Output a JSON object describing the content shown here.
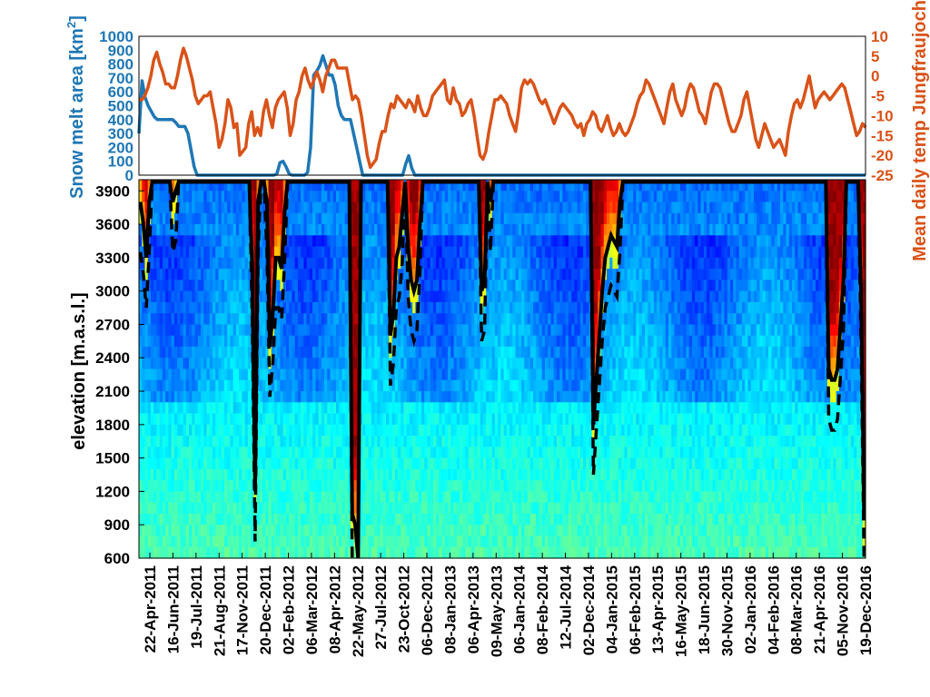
{
  "chart_data": [
    {
      "type": "line",
      "title": "",
      "xlabel": "",
      "ylabel_left": "Snow melt area [km",
      "ylabel_left_sup": "2",
      "ylabel_left_end": "]",
      "ylabel_right": "Mean daily temp Jungfraujoch",
      "ylim_left": [
        0,
        1000
      ],
      "ylim_right": [
        -25,
        10
      ],
      "yticks_left": [
        "0",
        "100",
        "200",
        "300",
        "400",
        "500",
        "600",
        "700",
        "800",
        "900",
        "1000"
      ],
      "yticks_right": [
        "-25",
        "-20",
        "-15",
        "-10",
        "-5",
        "0",
        "5",
        "10"
      ],
      "grid": false,
      "colors": {
        "left": "#1f77b4",
        "right": "#d95319"
      },
      "series": [
        {
          "axis": "left",
          "color": "#1f77b4",
          "values": [
            300,
            680,
            560,
            500,
            460,
            420,
            400,
            400,
            400,
            400,
            400,
            400,
            380,
            350,
            350,
            350,
            300,
            180,
            60,
            0,
            0,
            0,
            0,
            0,
            0,
            0,
            0,
            0,
            0,
            0,
            0,
            0,
            0,
            0,
            0,
            0,
            0,
            0,
            0,
            0,
            0,
            0,
            0,
            0,
            0,
            10,
            90,
            100,
            60,
            10,
            0,
            0,
            0,
            0,
            0,
            20,
            200,
            720,
            750,
            790,
            860,
            790,
            720,
            720,
            650,
            500,
            430,
            400,
            400,
            400,
            300,
            200,
            100,
            0,
            0,
            0,
            0,
            0,
            0,
            0,
            0,
            0,
            0,
            0,
            0,
            0,
            0,
            80,
            140,
            50,
            0,
            0,
            0,
            0,
            0,
            0,
            0,
            0,
            0,
            0,
            0,
            0,
            0,
            0,
            0,
            0,
            0,
            0,
            0,
            0,
            0,
            0,
            0,
            0,
            0,
            0,
            0,
            0,
            0,
            0,
            0,
            0,
            0,
            0,
            0,
            0,
            0,
            0,
            0,
            0,
            0,
            0,
            0,
            0,
            0,
            0,
            0,
            0,
            0,
            0,
            0,
            0,
            0,
            0,
            0,
            0,
            0,
            0,
            0,
            0,
            0,
            0,
            0,
            0,
            0,
            0,
            0,
            0,
            0,
            0,
            0,
            0,
            0,
            0,
            0,
            0,
            0,
            0,
            0,
            0,
            0,
            0,
            0,
            0,
            0,
            0,
            0,
            0,
            0,
            0,
            0,
            0,
            0,
            0,
            0,
            0,
            0,
            0,
            0,
            0,
            0,
            0,
            0,
            0,
            0,
            0,
            0,
            0,
            0,
            0,
            0,
            0,
            0,
            0,
            0,
            0,
            0,
            0,
            0,
            0,
            0,
            0,
            0,
            0,
            0,
            0,
            0,
            0,
            0,
            0,
            0,
            0,
            0,
            0,
            0,
            0,
            0,
            0,
            0,
            0,
            0,
            0,
            0,
            0,
            0,
            0,
            0,
            0
          ]
        },
        {
          "axis": "right",
          "color": "#d95319",
          "values": [
            -6,
            -6,
            -5,
            -3,
            0,
            4,
            6,
            3,
            1,
            -2,
            -2,
            -3,
            -3,
            0,
            4,
            7,
            5,
            2,
            -1,
            -5,
            -7,
            -6,
            -5,
            -5,
            -4,
            -8,
            -12,
            -18,
            -16,
            -12,
            -6,
            -8,
            -13,
            -12,
            -20,
            -19,
            -18,
            -12,
            -9,
            -15,
            -13,
            -15,
            -9,
            -6,
            -10,
            -13,
            -8,
            -6,
            -5,
            -4,
            -8,
            -15,
            -12,
            -6,
            -4,
            0,
            2,
            -1,
            -3,
            -1,
            1,
            -1,
            -4,
            0,
            2,
            4,
            4,
            2,
            2,
            2,
            2,
            -2,
            -6,
            -5,
            -6,
            -10,
            -15,
            -20,
            -23,
            -22,
            -21,
            -17,
            -14,
            -14,
            -10,
            -7,
            -8,
            -5,
            -6,
            -7,
            -8,
            -6,
            -7,
            -9,
            -5,
            -8,
            -10,
            -10,
            -8,
            -5,
            -4,
            -3,
            -2,
            -1,
            -6,
            -7,
            -3,
            -6,
            -7,
            -10,
            -9,
            -7,
            -6,
            -10,
            -15,
            -20,
            -21,
            -19,
            -14,
            -10,
            -6,
            -6,
            -5,
            -6,
            -7,
            -10,
            -12,
            -14,
            -9,
            -3,
            -1,
            -2,
            -1,
            -2,
            -4,
            -6,
            -7,
            -6,
            -8,
            -10,
            -12,
            -10,
            -8,
            -7,
            -8,
            -9,
            -10,
            -12,
            -13,
            -12,
            -15,
            -12,
            -11,
            -9,
            -10,
            -13,
            -14,
            -12,
            -10,
            -13,
            -15,
            -14,
            -12,
            -14,
            -15,
            -14,
            -12,
            -10,
            -7,
            -5,
            -4,
            -1,
            -2,
            -4,
            -6,
            -8,
            -10,
            -12,
            -8,
            -4,
            -2,
            -6,
            -8,
            -10,
            -8,
            -4,
            -2,
            -3,
            -6,
            -9,
            -10,
            -12,
            -8,
            -4,
            -2,
            -2,
            -3,
            -6,
            -9,
            -12,
            -14,
            -14,
            -12,
            -10,
            -6,
            -4,
            -8,
            -12,
            -16,
            -18,
            -15,
            -12,
            -14,
            -16,
            -18,
            -17,
            -16,
            -18,
            -20,
            -14,
            -10,
            -7,
            -6,
            -8,
            -6,
            -3,
            0,
            -4,
            -8,
            -6,
            -5,
            -4,
            -5,
            -6,
            -5,
            -4,
            -3,
            -2,
            -3,
            -6,
            -9,
            -12,
            -15,
            -14,
            -12,
            -13
          ]
        }
      ]
    },
    {
      "type": "heatmap",
      "title": "",
      "xlabel": "",
      "ylabel": "elevation [m.a.s.l.]",
      "ylim": [
        600,
        4000
      ],
      "yticks": [
        "600",
        "900",
        "1200",
        "1500",
        "1800",
        "2100",
        "2400",
        "2700",
        "3000",
        "3300",
        "3600",
        "3900"
      ],
      "colormap": "jet",
      "x_categories": [
        "22-Apr-2011",
        "16-Jun-2011",
        "19-Jul-2011",
        "21-Aug-2011",
        "17-Nov-2011",
        "20-Dec-2011",
        "02-Feb-2012",
        "06-Mar-2012",
        "08-Apr-2012",
        "22-May-2012",
        "27-Jul-2012",
        "23-Oct-2012",
        "06-Dec-2012",
        "08-Jan-2013",
        "06-Apr-2013",
        "09-May-2013",
        "06-Jan-2014",
        "08-Feb-2014",
        "12-Jul-2014",
        "02-Dec-2014",
        "04-Jan-2015",
        "06-Feb-2015",
        "13-Apr-2015",
        "16-May-2015",
        "18-Jun-2015",
        "30-Nov-2015",
        "02-Jan-2016",
        "04-Feb-2016",
        "08-Mar-2016",
        "21-Apr-2016",
        "05-Nov-2016",
        "19-Dec-2016"
      ],
      "snowline_solid": [
        3800,
        3600,
        3300,
        3800,
        4000,
        4000,
        4000,
        4000,
        4000,
        4000,
        4000,
        3800,
        3900,
        4000,
        4000,
        4000,
        4000,
        4000,
        4000,
        4000,
        4000,
        4000,
        4000,
        4000,
        4000,
        4000,
        4000,
        4000,
        4000,
        4000,
        4000,
        4000,
        4000,
        4000,
        4000,
        4000,
        4000,
        4000,
        3200,
        1200,
        3800,
        4000,
        4000,
        3800,
        2500,
        2800,
        3300,
        3300,
        3200,
        3700,
        4000,
        4000,
        4000,
        4000,
        4000,
        4000,
        4000,
        4000,
        4000,
        4000,
        4000,
        4000,
        4000,
        4000,
        4000,
        4000,
        4000,
        4000,
        4000,
        4000,
        4000,
        4000,
        1000,
        900,
        600,
        4000,
        4000,
        4000,
        4000,
        4000,
        4000,
        4000,
        4000,
        4000,
        4000,
        2600,
        2800,
        3300,
        3400,
        3700,
        4000,
        3400,
        3100,
        3000,
        3100,
        3600,
        4000,
        4000,
        4000,
        4000,
        4000,
        4000,
        4000,
        4000,
        4000,
        4000,
        4000,
        4000,
        4000,
        4000,
        4000,
        4000,
        4000,
        4000,
        4000,
        4000,
        3000,
        3100,
        4000,
        3800,
        4000,
        4000,
        4000,
        4000,
        4000,
        4000,
        4000,
        4000,
        4000,
        4000,
        4000,
        4000,
        4000,
        4000,
        4000,
        4000,
        4000,
        4000,
        4000,
        4000,
        4000,
        4000,
        4000,
        4000,
        4000,
        4000,
        4000,
        4000,
        4000,
        4000,
        4000,
        4000,
        4000,
        4000,
        1800,
        2200,
        2600,
        3000,
        3300,
        3400,
        3500,
        3450,
        3400,
        3800,
        4000,
        4000,
        4000,
        4000,
        4000,
        4000,
        4000,
        4000,
        4000,
        4000,
        4000,
        4000,
        4000,
        4000,
        4000,
        4000,
        4000,
        4000,
        4000,
        4000,
        4000,
        4000,
        4000,
        4000,
        4000,
        4000,
        4000,
        4000,
        4000,
        4000,
        4000,
        4000,
        4000,
        4000,
        4000,
        4000,
        4000,
        4000,
        4000,
        4000,
        4000,
        4000,
        4000,
        4000,
        4000,
        4000,
        4000,
        4000,
        4000,
        4000,
        4000,
        4000,
        4000,
        4000,
        4000,
        4000,
        4000,
        4000,
        4000,
        4000,
        4000,
        4000,
        4000,
        4000,
        4000,
        4000,
        4000,
        4000,
        4000,
        4000,
        2300,
        2200,
        2200,
        2300,
        2700,
        3100,
        4000,
        4000,
        4000,
        4000,
        4000,
        3000,
        950
      ]
    }
  ]
}
